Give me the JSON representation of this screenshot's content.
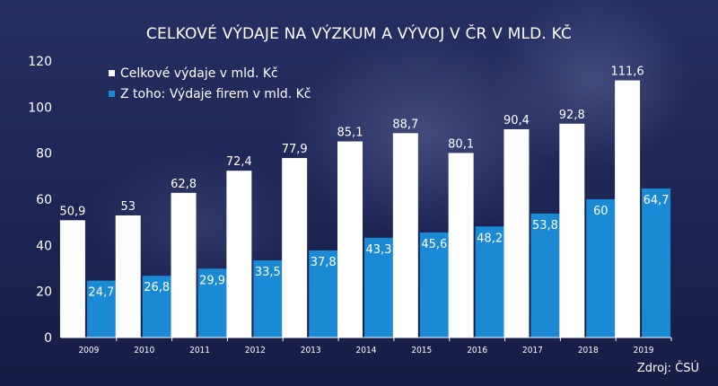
{
  "chart_data": {
    "type": "bar",
    "title": "CELKOVÉ VÝDAJE NA VÝZKUM A VÝVOJ V ČR V MLD. KČ",
    "categories": [
      "2009",
      "2010",
      "2011",
      "2012",
      "2013",
      "2014",
      "2015",
      "2016",
      "2017",
      "2018",
      "2019"
    ],
    "series": [
      {
        "name": "Celkové výdaje v mld. Kč",
        "color": "#ffffff",
        "values": [
          50.9,
          53,
          62.8,
          72.4,
          77.9,
          85.1,
          88.7,
          80.1,
          90.4,
          92.8,
          111.6
        ],
        "labels": [
          "50,9",
          "53",
          "62,8",
          "72,4",
          "77,9",
          "85,1",
          "88,7",
          "80,1",
          "90,4",
          "92,8",
          "111,6"
        ]
      },
      {
        "name": "Z toho: Výdaje firem v mld. Kč",
        "color": "#1a8ad4",
        "values": [
          24.7,
          26.8,
          29.9,
          33.5,
          37.8,
          43.3,
          45.6,
          48.2,
          53.8,
          60,
          64.7
        ],
        "labels": [
          "24,7",
          "26,8",
          "29,9",
          "33,5",
          "37,8",
          "43,3",
          "45,6",
          "48,2",
          "53,8",
          "60",
          "64,7"
        ]
      }
    ],
    "yticks": [
      "0",
      "20",
      "40",
      "60",
      "80",
      "100",
      "120"
    ],
    "ylim": [
      0,
      120
    ],
    "xlabel": "",
    "ylabel": "",
    "grid": false,
    "legend": "top-left",
    "source": "Zdroj: ČSÚ"
  }
}
